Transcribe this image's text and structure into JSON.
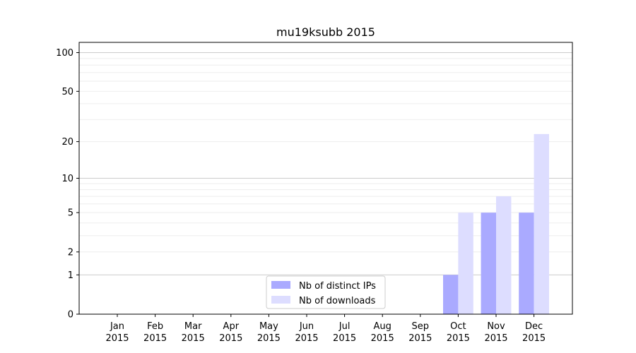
{
  "chart_data": {
    "type": "bar",
    "title": "mu19ksubb 2015",
    "xlabel": "",
    "ylabel": "",
    "y_scale": "symlog",
    "ylim": [
      0,
      120
    ],
    "y_ticks": [
      0,
      1,
      2,
      5,
      10,
      20,
      50,
      100
    ],
    "y_tick_labels": [
      "0",
      "1",
      "2",
      "5",
      "10",
      "20",
      "50",
      "100"
    ],
    "grid": "horizontal",
    "legend_position": "bottom-center",
    "categories": [
      "Jan\n2015",
      "Feb\n2015",
      "Mar\n2015",
      "Apr\n2015",
      "May\n2015",
      "Jun\n2015",
      "Jul\n2015",
      "Aug\n2015",
      "Sep\n2015",
      "Oct\n2015",
      "Nov\n2015",
      "Dec\n2015"
    ],
    "series": [
      {
        "name": "Nb of distinct IPs",
        "color": "#aaaaff",
        "values": [
          0,
          0,
          0,
          0,
          0,
          0,
          0,
          0,
          0,
          1,
          5,
          5
        ]
      },
      {
        "name": "Nb of downloads",
        "color": "#ddddff",
        "values": [
          0,
          0,
          0,
          0,
          0,
          0,
          0,
          0,
          0,
          5,
          7,
          23
        ]
      }
    ]
  }
}
